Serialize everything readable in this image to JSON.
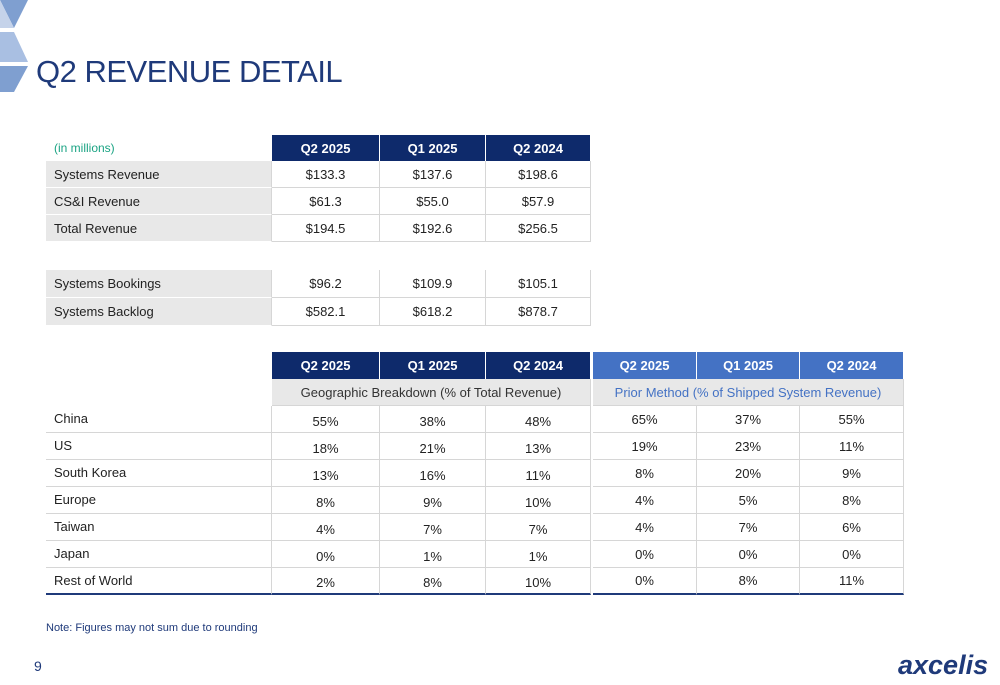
{
  "title": "Q2 REVENUE DETAIL",
  "revenue_table": {
    "unit_label": "(in millions)",
    "headers": [
      "Q2 2025",
      "Q1 2025",
      "Q2 2024"
    ],
    "rows": [
      [
        "Systems Revenue",
        "$133.3",
        "$137.6",
        "$198.6"
      ],
      [
        "CS&I Revenue",
        "$61.3",
        "$55.0",
        "$57.9"
      ],
      [
        "Total Revenue",
        "$194.5",
        "$192.6",
        "$256.5"
      ]
    ]
  },
  "bookings_table": {
    "rows": [
      [
        "Systems Bookings",
        "$96.2",
        "$109.9",
        "$105.1"
      ],
      [
        "Systems Backlog",
        "$582.1",
        "$618.2",
        "$878.7"
      ]
    ]
  },
  "geo_table": {
    "headers": [
      "Q2 2025",
      "Q1 2025",
      "Q2 2024",
      "Q2 2025",
      "Q1 2025",
      "Q2 2024"
    ],
    "group_labels": [
      "Geographic Breakdown (% of Total Revenue)",
      "Prior Method (% of Shipped System Revenue)"
    ],
    "rows": [
      [
        "China",
        "55%",
        "38%",
        "48%",
        "65%",
        "37%",
        "55%"
      ],
      [
        "US",
        "18%",
        "21%",
        "13%",
        "19%",
        "23%",
        "11%"
      ],
      [
        "South Korea",
        "13%",
        "16%",
        "11%",
        "8%",
        "20%",
        "9%"
      ],
      [
        "Europe",
        "8%",
        "9%",
        "10%",
        "4%",
        "5%",
        "8%"
      ],
      [
        "Taiwan",
        "4%",
        "7%",
        "7%",
        "4%",
        "7%",
        "6%"
      ],
      [
        "Japan",
        "0%",
        "1%",
        "1%",
        "0%",
        "0%",
        "0%"
      ],
      [
        "Rest of World",
        "2%",
        "8%",
        "10%",
        "0%",
        "8%",
        "11%"
      ]
    ]
  },
  "note": "Note: Figures may not sum due to rounding",
  "page_number": "9",
  "logo": "axcelis"
}
